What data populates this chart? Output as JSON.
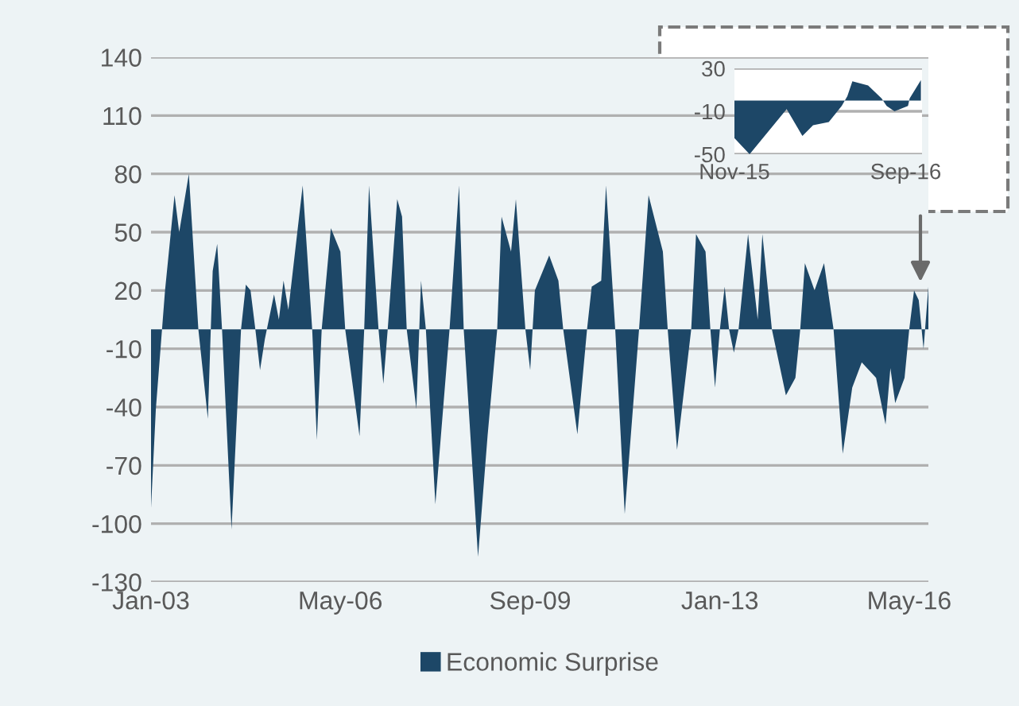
{
  "chart_data": [
    {
      "type": "area",
      "x": [
        "2003-01",
        "2003-02",
        "2003-04",
        "2003-06",
        "2003-07",
        "2003-09",
        "2003-11",
        "2004-01",
        "2004-02",
        "2004-03",
        "2004-04",
        "2004-06",
        "2004-08",
        "2004-09",
        "2004-10",
        "2004-11",
        "2004-12",
        "2005-01",
        "2005-03",
        "2005-04",
        "2005-05",
        "2005-06",
        "2005-09",
        "2005-11",
        "2005-12",
        "2006-01",
        "2006-03",
        "2006-05",
        "2006-06",
        "2006-09",
        "2006-10",
        "2006-11",
        "2007-01",
        "2007-02",
        "2007-03",
        "2007-05",
        "2007-06",
        "2007-07",
        "2007-09",
        "2007-10",
        "2007-11",
        "2008-01",
        "2008-04",
        "2008-06",
        "2008-07",
        "2008-10",
        "2008-12",
        "2009-02",
        "2009-03",
        "2009-05",
        "2009-06",
        "2009-08",
        "2009-09",
        "2009-10",
        "2010-01",
        "2010-03",
        "2010-04",
        "2010-07",
        "2010-09",
        "2010-10",
        "2010-12",
        "2011-01",
        "2011-03",
        "2011-05",
        "2011-08",
        "2011-10",
        "2012-01",
        "2012-02",
        "2012-04",
        "2012-07",
        "2012-08",
        "2012-10",
        "2012-11",
        "2012-12",
        "2013-01",
        "2013-02",
        "2013-03",
        "2013-04",
        "2013-05",
        "2013-07",
        "2013-09",
        "2013-10",
        "2013-12",
        "2014-03",
        "2014-05",
        "2014-06",
        "2014-07",
        "2014-09",
        "2014-11",
        "2015-01",
        "2015-03",
        "2015-05",
        "2015-07",
        "2015-10",
        "2015-12",
        "2016-01",
        "2016-02",
        "2016-04",
        "2016-05",
        "2016-06",
        "2016-07",
        "2016-08",
        "2016-09"
      ],
      "series": [
        {
          "name": "Economic Surprise",
          "color": "#1d4767",
          "values": [
            -92,
            -41,
            20,
            69,
            50,
            80,
            0,
            -46,
            30,
            44,
            0,
            -103,
            0,
            23,
            20,
            0,
            -21,
            -5,
            18,
            5,
            25,
            10,
            74,
            0,
            -57,
            0,
            52,
            40,
            0,
            -55,
            0,
            74,
            0,
            -28,
            0,
            67,
            58,
            0,
            -41,
            25,
            0,
            -90,
            0,
            74,
            0,
            -117,
            -55,
            0,
            58,
            40,
            67,
            0,
            -21,
            20,
            38,
            25,
            0,
            -54,
            0,
            22,
            25,
            74,
            0,
            -95,
            0,
            69,
            40,
            0,
            -62,
            0,
            49,
            40,
            0,
            -30,
            0,
            22,
            0,
            -12,
            0,
            49,
            5,
            49,
            0,
            -34,
            -25,
            0,
            34,
            20,
            34,
            0,
            -64,
            -30,
            -17,
            -25,
            -49,
            -20,
            -38,
            -25,
            0,
            20,
            15,
            -10,
            22
          ]
        }
      ],
      "xlim": [
        "2003-01",
        "2016-09"
      ],
      "xticks": [
        {
          "value": "2003-01",
          "label": "Jan-03"
        },
        {
          "value": "2006-05",
          "label": "May-06"
        },
        {
          "value": "2009-09",
          "label": "Sep-09"
        },
        {
          "value": "2013-01",
          "label": "Jan-13"
        },
        {
          "value": "2016-05",
          "label": "May-16"
        }
      ],
      "ylim": [
        -130,
        140
      ],
      "yticks": [
        -130,
        -100,
        -70,
        -40,
        -10,
        20,
        50,
        80,
        110,
        140
      ],
      "grid": "y",
      "legend": "bottom"
    },
    {
      "type": "area",
      "x": [
        "2015-11-01",
        "2015-11-28",
        "2016-02-02",
        "2016-03-01",
        "2016-03-20",
        "2016-04-17",
        "2016-05-10",
        "2016-05-20",
        "2016-05-29",
        "2016-06-26",
        "2016-07-20",
        "2016-07-29",
        "2016-08-12",
        "2016-09-05",
        "2016-09-08",
        "2016-09-28"
      ],
      "series": [
        {
          "color": "#1d4767",
          "values": [
            -35,
            -50,
            -8,
            -33,
            -23,
            -20,
            -5,
            4,
            18,
            14,
            2,
            -5,
            -10,
            -5,
            2,
            19
          ]
        }
      ],
      "xlim": [
        "2015-11-01",
        "2016-09-30"
      ],
      "xticks": [
        {
          "value": "2015-11-01",
          "label": "Nov-15"
        },
        {
          "value": "2016-09-01",
          "label": "Sep-16"
        }
      ],
      "ylim": [
        -50,
        30
      ],
      "yticks": [
        -50,
        -10,
        30
      ],
      "grid": "y",
      "legend": false
    }
  ]
}
